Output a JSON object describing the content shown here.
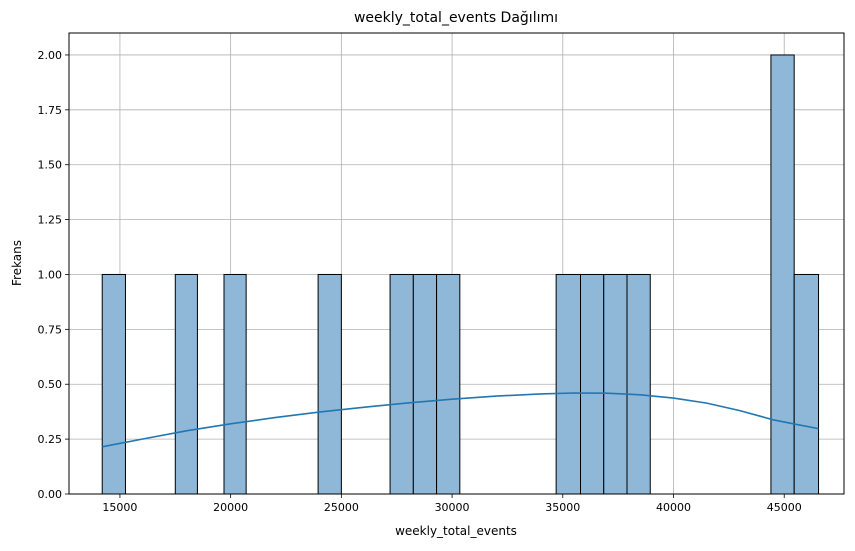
{
  "chart_data": {
    "type": "bar",
    "title": "weekly_total_events Dağılımı",
    "xlabel": "weekly_total_events",
    "ylabel": "Frekans",
    "xlim": [
      12700,
      47700
    ],
    "ylim": [
      0,
      2.1
    ],
    "grid": true,
    "x_ticks": [
      {
        "value": 15000,
        "label": "15000"
      },
      {
        "value": 20000,
        "label": "20000"
      },
      {
        "value": 25000,
        "label": "25000"
      },
      {
        "value": 30000,
        "label": "30000"
      },
      {
        "value": 35000,
        "label": "35000"
      },
      {
        "value": 40000,
        "label": "40000"
      },
      {
        "value": 45000,
        "label": "45000"
      }
    ],
    "y_ticks": [
      {
        "value": 0.0,
        "label": "0.00"
      },
      {
        "value": 0.25,
        "label": "0.25"
      },
      {
        "value": 0.5,
        "label": "0.50"
      },
      {
        "value": 0.75,
        "label": "0.75"
      },
      {
        "value": 1.0,
        "label": "1.00"
      },
      {
        "value": 1.25,
        "label": "1.25"
      },
      {
        "value": 1.5,
        "label": "1.50"
      },
      {
        "value": 1.75,
        "label": "1.75"
      },
      {
        "value": 2.0,
        "label": "2.00"
      }
    ],
    "bins": [
      {
        "start": 14200,
        "end": 15250,
        "count": 1
      },
      {
        "start": 17500,
        "end": 18500,
        "count": 1
      },
      {
        "start": 19700,
        "end": 20700,
        "count": 1
      },
      {
        "start": 23950,
        "end": 25000,
        "count": 1
      },
      {
        "start": 27200,
        "end": 28250,
        "count": 1
      },
      {
        "start": 28250,
        "end": 29300,
        "count": 1
      },
      {
        "start": 29300,
        "end": 30350,
        "count": 1
      },
      {
        "start": 34700,
        "end": 35800,
        "count": 1
      },
      {
        "start": 35800,
        "end": 36850,
        "count": 1
      },
      {
        "start": 36850,
        "end": 37900,
        "count": 1
      },
      {
        "start": 37900,
        "end": 38950,
        "count": 1
      },
      {
        "start": 44400,
        "end": 45450,
        "count": 2
      },
      {
        "start": 45450,
        "end": 46550,
        "count": 1
      }
    ],
    "kde": {
      "x": [
        14200,
        16000,
        18000,
        20000,
        22000,
        24000,
        26000,
        28000,
        30000,
        32000,
        34000,
        35500,
        37000,
        38500,
        40000,
        41500,
        43000,
        44500,
        45500,
        46550
      ],
      "y": [
        0.215,
        0.25,
        0.288,
        0.32,
        0.348,
        0.373,
        0.395,
        0.415,
        0.432,
        0.446,
        0.456,
        0.46,
        0.459,
        0.452,
        0.437,
        0.414,
        0.38,
        0.338,
        0.318,
        0.298
      ]
    },
    "colors": {
      "bar_fill": "#8fb8d8",
      "bar_edge": "#000000",
      "kde_line": "#1f77b4",
      "grid": "#b0b0b0",
      "axis": "#000000"
    }
  }
}
